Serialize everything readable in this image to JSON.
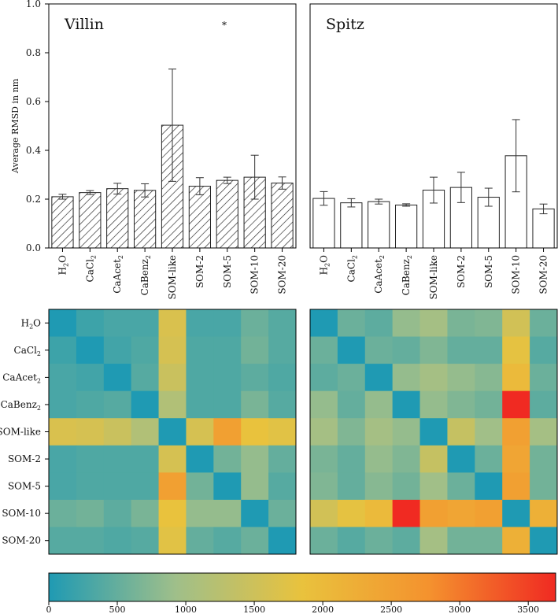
{
  "chart_data": [
    {
      "type": "bar",
      "panel": "top-left",
      "title": "Villin",
      "annotation": "*",
      "ylabel": "Average RMSD in nm",
      "ylim": [
        0,
        1.0
      ],
      "yticks": [
        "0.0",
        "0.2",
        "0.4",
        "0.6",
        "0.8",
        "1.0"
      ],
      "hatch": "diagonal",
      "categories": [
        {
          "base": "H",
          "sub": "2",
          "tail": "O"
        },
        {
          "base": "CaCl",
          "sub": "2",
          "tail": ""
        },
        {
          "base": "CaAcet",
          "sub": "2",
          "tail": ""
        },
        {
          "base": "CaBenz",
          "sub": "2",
          "tail": ""
        },
        {
          "base": "SOM-like",
          "sub": "",
          "tail": ""
        },
        {
          "base": "SOM-2",
          "sub": "",
          "tail": ""
        },
        {
          "base": "SOM-5",
          "sub": "",
          "tail": ""
        },
        {
          "base": "SOM-10",
          "sub": "",
          "tail": ""
        },
        {
          "base": "SOM-20",
          "sub": "",
          "tail": ""
        }
      ],
      "values": [
        0.21,
        0.227,
        0.243,
        0.236,
        0.503,
        0.253,
        0.277,
        0.29,
        0.266
      ],
      "errors": [
        0.01,
        0.008,
        0.022,
        0.027,
        0.23,
        0.035,
        0.013,
        0.09,
        0.025
      ]
    },
    {
      "type": "bar",
      "panel": "top-right",
      "title": "Spitz",
      "ylim": [
        0,
        1.0
      ],
      "hatch": "none",
      "categories": [
        {
          "base": "H",
          "sub": "2",
          "tail": "O"
        },
        {
          "base": "CaCl",
          "sub": "2",
          "tail": ""
        },
        {
          "base": "CaAcet",
          "sub": "2",
          "tail": ""
        },
        {
          "base": "CaBenz",
          "sub": "2",
          "tail": ""
        },
        {
          "base": "SOM-like",
          "sub": "",
          "tail": ""
        },
        {
          "base": "SOM-2",
          "sub": "",
          "tail": ""
        },
        {
          "base": "SOM-5",
          "sub": "",
          "tail": ""
        },
        {
          "base": "SOM-10",
          "sub": "",
          "tail": ""
        },
        {
          "base": "SOM-20",
          "sub": "",
          "tail": ""
        }
      ],
      "values": [
        0.203,
        0.185,
        0.19,
        0.176,
        0.237,
        0.248,
        0.208,
        0.378,
        0.16
      ],
      "errors": [
        0.028,
        0.017,
        0.01,
        0.005,
        0.053,
        0.062,
        0.037,
        0.148,
        0.02
      ]
    },
    {
      "type": "heatmap",
      "panel": "bottom-left",
      "rows": [
        {
          "base": "H",
          "sub": "2",
          "tail": "O"
        },
        {
          "base": "CaCl",
          "sub": "2",
          "tail": ""
        },
        {
          "base": "CaAcet",
          "sub": "2",
          "tail": ""
        },
        {
          "base": "CaBenz",
          "sub": "2",
          "tail": ""
        },
        {
          "base": "SOM-like",
          "sub": "",
          "tail": ""
        },
        {
          "base": "SOM-2",
          "sub": "",
          "tail": ""
        },
        {
          "base": "SOM-5",
          "sub": "",
          "tail": ""
        },
        {
          "base": "SOM-10",
          "sub": "",
          "tail": ""
        },
        {
          "base": "SOM-20",
          "sub": "",
          "tail": ""
        }
      ],
      "values": [
        [
          0,
          220,
          300,
          300,
          1650,
          300,
          300,
          550,
          400
        ],
        [
          220,
          0,
          250,
          350,
          1600,
          350,
          350,
          600,
          400
        ],
        [
          300,
          250,
          0,
          400,
          1450,
          350,
          350,
          450,
          350
        ],
        [
          300,
          350,
          400,
          0,
          1150,
          350,
          350,
          650,
          400
        ],
        [
          1650,
          1600,
          1450,
          1150,
          0,
          1600,
          2500,
          1850,
          1750
        ],
        [
          300,
          350,
          350,
          350,
          1600,
          0,
          600,
          850,
          500
        ],
        [
          300,
          350,
          350,
          350,
          2500,
          600,
          0,
          850,
          400
        ],
        [
          550,
          600,
          450,
          650,
          1850,
          850,
          850,
          0,
          550
        ],
        [
          400,
          400,
          350,
          400,
          1750,
          500,
          400,
          550,
          0
        ]
      ]
    },
    {
      "type": "heatmap",
      "panel": "bottom-right",
      "values": [
        [
          0,
          550,
          450,
          850,
          1000,
          650,
          700,
          1550,
          550
        ],
        [
          550,
          0,
          550,
          500,
          700,
          500,
          500,
          1800,
          400
        ],
        [
          450,
          550,
          0,
          850,
          1000,
          850,
          750,
          2000,
          550
        ],
        [
          850,
          500,
          850,
          0,
          850,
          700,
          600,
          3700,
          450
        ],
        [
          1000,
          700,
          1000,
          850,
          0,
          1400,
          950,
          2500,
          1000
        ],
        [
          650,
          500,
          850,
          700,
          1400,
          0,
          550,
          2400,
          600
        ],
        [
          700,
          500,
          750,
          600,
          950,
          550,
          0,
          2500,
          600
        ],
        [
          1550,
          1800,
          2000,
          3700,
          2500,
          2400,
          2500,
          0,
          2200
        ],
        [
          550,
          400,
          550,
          450,
          1000,
          600,
          600,
          2200,
          0
        ]
      ]
    },
    {
      "type": "colorbar",
      "range": [
        0,
        3700
      ],
      "ticks": [
        0,
        500,
        1000,
        1500,
        2000,
        2500,
        3000,
        3500
      ],
      "colors": [
        "#1f9ab3",
        "#9fbf8a",
        "#e9c23d",
        "#f4922e",
        "#f02a22"
      ]
    }
  ]
}
